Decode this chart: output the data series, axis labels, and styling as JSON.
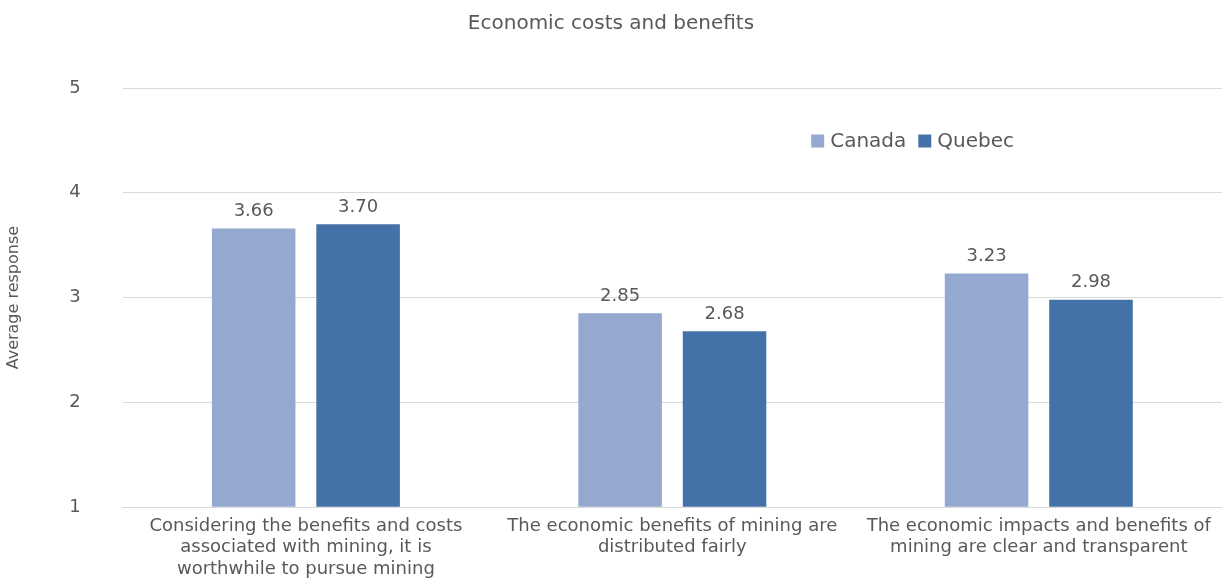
{
  "chart_data": {
    "type": "bar",
    "title": "Economic costs and benefits",
    "ylabel": "Average response",
    "categories": [
      "Considering the benefits and costs associated with mining, it is worthwhile to pursue mining",
      "The economic benefits of mining are distributed fairly",
      "The economic impacts and benefits of mining are clear and transparent"
    ],
    "series": [
      {
        "name": "Canada",
        "color": "#95a9d0",
        "values": [
          3.66,
          2.85,
          3.23
        ],
        "value_labels": [
          "3.66",
          "2.85",
          "3.23"
        ]
      },
      {
        "name": "Quebec",
        "color": "#4472a8",
        "values": [
          3.7,
          2.68,
          2.98
        ],
        "value_labels": [
          "3.70",
          "2.68",
          "2.98"
        ]
      }
    ],
    "ylim": [
      1,
      5
    ],
    "yticks": [
      1,
      2,
      3,
      4,
      5
    ],
    "grid": "y",
    "legend": "top right"
  }
}
